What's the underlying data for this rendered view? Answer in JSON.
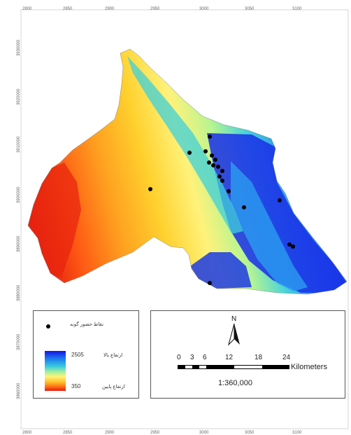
{
  "frame": {
    "x_ticks": [
      "2800",
      "2850",
      "2900",
      "2950",
      "3000",
      "3050",
      "3100"
    ],
    "y_ticks": [
      "3930000",
      "3920000",
      "3910000",
      "3900000",
      "3890000",
      "3880000",
      "3870000",
      "3860000",
      "3850000"
    ]
  },
  "legend": {
    "point_label": "نقاط حضور گونه",
    "high_value": "2505",
    "high_label": "ارتفاع بالا",
    "low_value": "350",
    "low_label": "ارتفاع پایین"
  },
  "scale": {
    "north": "N",
    "ticks": [
      "0",
      "3",
      "6",
      "12",
      "18",
      "24"
    ],
    "unit": "Kilometers",
    "ratio": "1:360,000"
  },
  "colors": {
    "high": "#1414e6",
    "mid_high": "#35c8e0",
    "mid": "#fff27a",
    "mid_low": "#ffc12a",
    "low": "#e21a10",
    "point": "#000000"
  }
}
